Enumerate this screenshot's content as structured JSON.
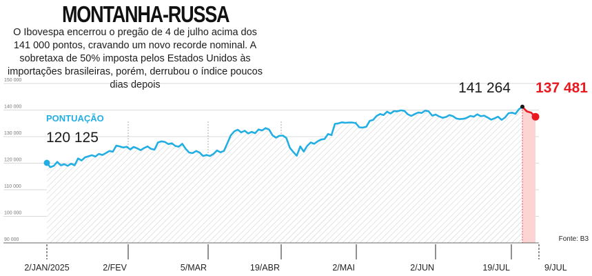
{
  "headline": "MONTANHA-RUSSA",
  "subtitle": "O Ibovespa encerrou o pregão de 4 de julho acima dos 141 000 pontos, cravando um novo recorde nominal. A sobretaxa de 50% imposta pelos Estados Unidos às importações brasileiras, porém, derrubou o índice poucos dias depois",
  "colors": {
    "line": "#22aee3",
    "drop": "#e8191f",
    "drop_fill": "#fbd4d3",
    "grid": "#999999",
    "text": "#1a1a1a"
  },
  "chart_data": {
    "type": "line",
    "ylim": [
      90000,
      150000
    ],
    "yticks": [
      "90 000",
      "100 000",
      "110 000",
      "120 000",
      "130 000",
      "140 000",
      "150 000"
    ],
    "xticks": [
      "2/JAN/2025",
      "2/FEV",
      "5/MAR",
      "19/ABR",
      "2/MAI",
      "2/JUN",
      "19/JUL",
      "9/JUL"
    ],
    "series_label": "PONTUAÇÃO",
    "start_label": "120 125",
    "peak_label": "141 264",
    "end_label": "137 481",
    "source": "Fonte: B3",
    "main_series": [
      120125,
      118500,
      119000,
      120500,
      119200,
      119600,
      119000,
      119800,
      119200,
      121800,
      121000,
      122200,
      122600,
      123000,
      122500,
      123500,
      123100,
      123800,
      124600,
      124300,
      126600,
      126300,
      125900,
      126200,
      125200,
      126100,
      125600,
      124900,
      125700,
      126300,
      125400,
      125100,
      127800,
      128200,
      128000,
      127200,
      127500,
      126500,
      126200,
      127300,
      125400,
      124000,
      123800,
      124600,
      124000,
      122700,
      123100,
      122700,
      123500,
      124800,
      124100,
      124600,
      127500,
      130500,
      132000,
      132600,
      131600,
      132200,
      131200,
      131800,
      131300,
      132700,
      132300,
      133200,
      132700,
      130500,
      129600,
      130300,
      130400,
      129500,
      125800,
      124200,
      122800,
      126300,
      124400,
      126500,
      127800,
      127300,
      128200,
      128900,
      129100,
      131000,
      130600,
      134800,
      135000,
      135400,
      135200,
      135300,
      135300,
      135100,
      133500,
      133400,
      133700,
      135900,
      136300,
      137800,
      138500,
      138100,
      139400,
      138700,
      139600,
      139500,
      139900,
      139700,
      138400,
      137800,
      138500,
      139100,
      138900,
      139800,
      139500,
      137900,
      138300,
      137600,
      137100,
      137400,
      138100,
      137700,
      136800,
      136600,
      136700,
      137100,
      137800,
      137500,
      138400,
      137700,
      137900,
      137200,
      136400,
      136900,
      137500,
      136300,
      137200,
      138800,
      139000,
      138600,
      140300,
      141264
    ],
    "drop_series": [
      141264,
      139500,
      139000,
      137481
    ],
    "markers": [
      {
        "label": "start",
        "value": 120125
      },
      {
        "label": "peak",
        "value": 141264
      },
      {
        "label": "end",
        "value": 137481
      }
    ]
  }
}
